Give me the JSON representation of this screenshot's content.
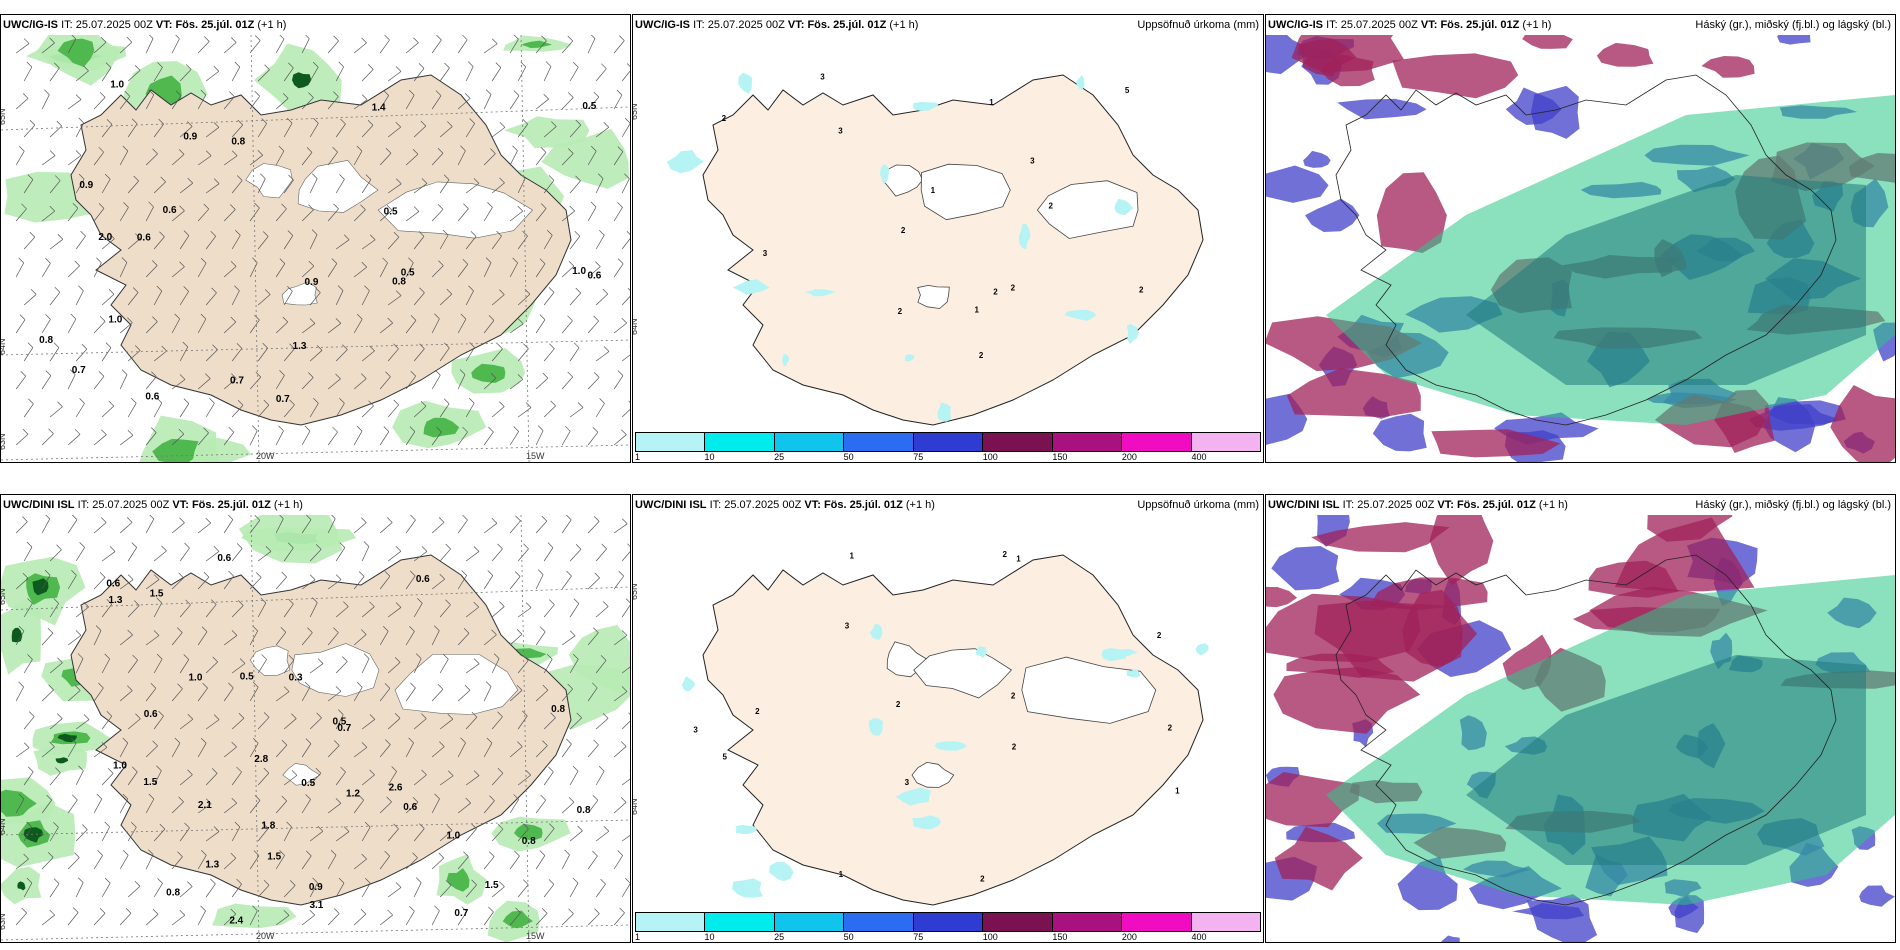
{
  "top_row": {
    "panel_a": {
      "model": "UWC/IG-IS",
      "it_label": "IT:",
      "it": "25.07.2025 00Z",
      "vt_label": "VT:",
      "vt": "Fös. 25.júl. 01Z",
      "lead": "(+1 h)",
      "precip_labels": [
        "0.5",
        "0.8",
        "0.7",
        "0.6",
        "0.9",
        "0.7",
        "0.5",
        "0.5",
        "0.8",
        "1.0",
        "1.4",
        "1.0",
        "0.9",
        "0.7",
        "1.0",
        "0.6",
        "0.6",
        "0.8",
        "0.6",
        "0.9",
        "2.0",
        "1.3"
      ],
      "axis": {
        "lat_a": "65N",
        "lat_b": "64N",
        "lat_c": "63N",
        "lon_a": "20W",
        "lon_b": "15W"
      }
    },
    "panel_b": {
      "model": "UWC/IG-IS",
      "it_label": "IT:",
      "it": "25.07.2025 00Z",
      "vt_label": "VT:",
      "vt": "Fös. 25.júl. 01Z",
      "lead": "(+1 h)",
      "field": "Uppsöfnuð úrkoma (mm)",
      "precip_labels": [
        "3",
        "2",
        "2",
        "2",
        "5",
        "1",
        "2",
        "3",
        "1",
        "3",
        "1",
        "2",
        "2",
        "2",
        "3",
        "2"
      ],
      "axis": {
        "lat_a": "65N",
        "lat_b": "64N"
      }
    },
    "panel_c": {
      "model": "UWC/IG-IS",
      "it_label": "IT:",
      "it": "25.07.2025 00Z",
      "vt_label": "VT:",
      "vt": "Fös. 25.júl. 01Z",
      "lead": "(+1 h)",
      "field": "Háský (gr.), miðský (fj.bl.) og lágský (bl.)"
    }
  },
  "bottom_row": {
    "panel_a": {
      "model": "UWC/DINI ISL",
      "it_label": "IT:",
      "it": "25.07.2025 00Z",
      "vt_label": "VT:",
      "vt": "Fös. 25.júl. 01Z",
      "lead": "(+1 h)",
      "precip_labels": [
        "0.8",
        "1.5",
        "2.6",
        "0.9",
        "1.2",
        "1.0",
        "1.0",
        "1.3",
        "1.5",
        "1.3",
        "0.5",
        "0.6",
        "0.5",
        "0.8",
        "1.0",
        "0.7",
        "1.5",
        "0.8",
        "2.1",
        "0.3",
        "0.7",
        "3.1",
        "1.5",
        "0.6",
        "0.6",
        "2.8",
        "0.6",
        "0.6",
        "2.4",
        "0.8",
        "0.5",
        "1.8"
      ],
      "axis": {
        "lat_a": "65N",
        "lat_b": "64N",
        "lat_c": "63N",
        "lon_a": "20W",
        "lon_b": "15W"
      }
    },
    "panel_b": {
      "model": "UWC/DINI ISL",
      "it_label": "IT:",
      "it": "25.07.2025 00Z",
      "vt_label": "VT:",
      "vt": "Fös. 25.júl. 01Z",
      "lead": "(+1 h)",
      "field": "Uppsöfnuð úrkoma (mm)",
      "precip_labels": [
        "2",
        "3",
        "1",
        "2",
        "1",
        "1",
        "5",
        "1",
        "2",
        "3",
        "2",
        "2",
        "3",
        "2",
        "2",
        "2"
      ],
      "axis": {
        "lat_a": "65N",
        "lat_b": "64N"
      }
    },
    "panel_c": {
      "model": "UWC/DINI ISL",
      "it_label": "IT:",
      "it": "25.07.2025 00Z",
      "vt_label": "VT:",
      "vt": "Fös. 25.júl. 01Z",
      "lead": "(+1 h)",
      "field": "Háský (gr.), miðský (fj.bl.) og lágský (bl.)"
    }
  },
  "colorbar": {
    "ticks": [
      "1",
      "10",
      "25",
      "50",
      "75",
      "100",
      "150",
      "200",
      "400"
    ],
    "colors": [
      "#b5f3f4",
      "#00ecec",
      "#10c4ec",
      "#2a6df0",
      "#2f3cd2",
      "#7a1150",
      "#a8117e",
      "#f00cc0",
      "#f3b2f0"
    ]
  },
  "colors": {
    "land": "#eeddc9",
    "land_light": "#fcefe2",
    "precip_light": "#b7ebb4",
    "precip_mid": "#4fb84f",
    "precip_dark": "#0d5a1e",
    "high_cloud": "#2cc688",
    "mid_cloud": "#a0225a",
    "low_cloud": "#4040c8"
  }
}
